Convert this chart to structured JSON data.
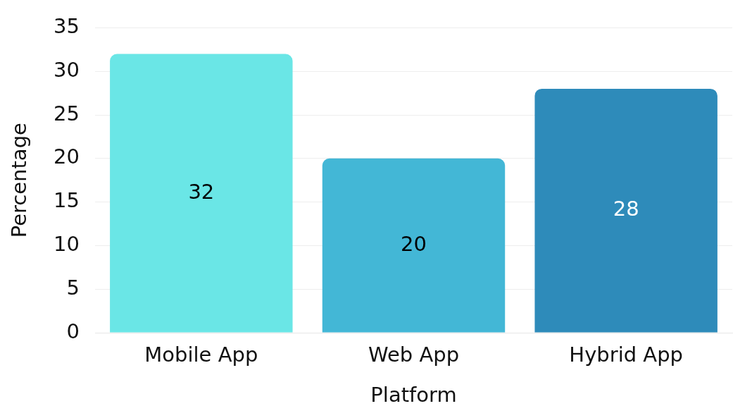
{
  "chart_data": {
    "type": "bar",
    "xlabel": "Platform",
    "ylabel": "Percentage",
    "categories": [
      "Mobile App",
      "Web App",
      "Hybrid App"
    ],
    "values": [
      32,
      20,
      28
    ],
    "colors": [
      "#6ae6e6",
      "#43b7d6",
      "#2e8bba"
    ],
    "ylim": [
      0,
      35
    ],
    "yticks": [
      0,
      5,
      10,
      15,
      20,
      25,
      30,
      35
    ],
    "grid": "y",
    "data_labels": true
  }
}
